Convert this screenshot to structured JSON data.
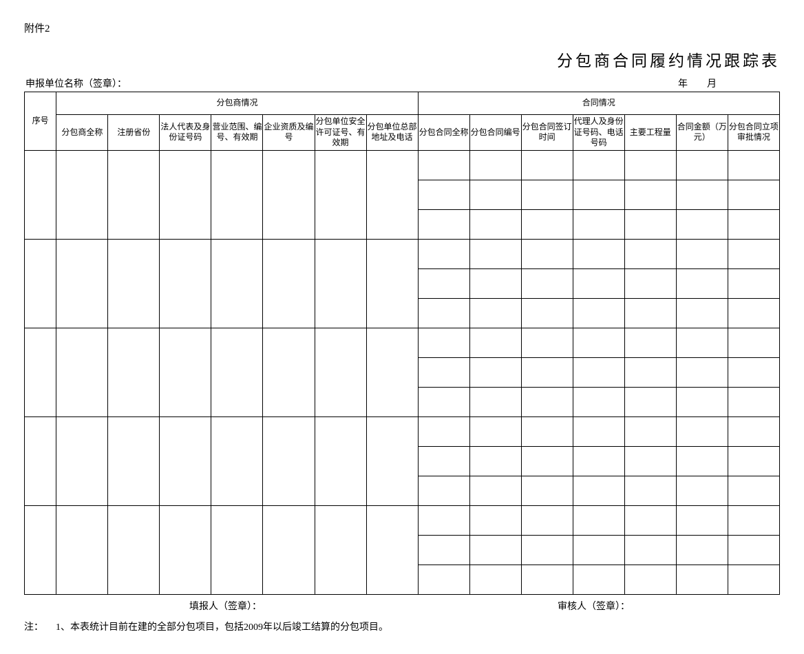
{
  "attachment_label": "附件2",
  "title": "分包商合同履约情况跟踪表",
  "header": {
    "org_label": "申报单位名称（签章）：",
    "year_label": "年",
    "month_label": "月"
  },
  "table": {
    "col_seq": "序号",
    "group_subcontractor": "分包商情况",
    "group_contract": "合同情况",
    "cols_sub": [
      "分包商全称",
      "注册省份",
      "法人代表及身份证号码",
      "营业范围、编号、有效期",
      "企业资质及编号",
      "分包单位安全许可证号、有效期",
      "分包单位总部地址及电话"
    ],
    "cols_contract": [
      "分包合同全称",
      "分包合同编号",
      "分包合同签订时间",
      "代理人及身份证号码、电话号码",
      "主要工程量",
      "合同金额（万元）",
      "分包合同立项审批情况"
    ]
  },
  "footer": {
    "filler": "填报人（签章）：",
    "reviewer": "审核人（签章）："
  },
  "note": {
    "label": "注：",
    "text": "1、本表统计目前在建的全部分包项目，包括2009年以后竣工结算的分包项目。"
  }
}
